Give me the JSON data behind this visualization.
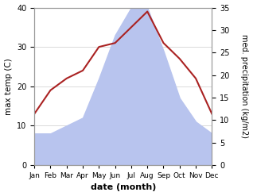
{
  "months": [
    "Jan",
    "Feb",
    "Mar",
    "Apr",
    "May",
    "Jun",
    "Jul",
    "Aug",
    "Sep",
    "Oct",
    "Nov",
    "Dec"
  ],
  "precipitation": [
    8,
    8,
    10,
    12,
    22,
    33,
    40,
    40,
    29,
    17,
    11,
    8
  ],
  "temperature": [
    13,
    19,
    22,
    24,
    30,
    31,
    35,
    39,
    31,
    27,
    22,
    13
  ],
  "precip_color": "#b8c4ee",
  "temp_color": "#aa2222",
  "left_ylim": [
    0,
    40
  ],
  "right_ylim": [
    0,
    35
  ],
  "left_yticks": [
    0,
    10,
    20,
    30,
    40
  ],
  "right_yticks": [
    0,
    5,
    10,
    15,
    20,
    25,
    30,
    35
  ],
  "ylabel_left": "max temp (C)",
  "ylabel_right": "med. precipitation (kg/m2)",
  "xlabel": "date (month)",
  "bg_color": "#ffffff",
  "plot_bg_color": "#ffffff",
  "grid_color": "#cccccc",
  "spine_color": "#999999"
}
